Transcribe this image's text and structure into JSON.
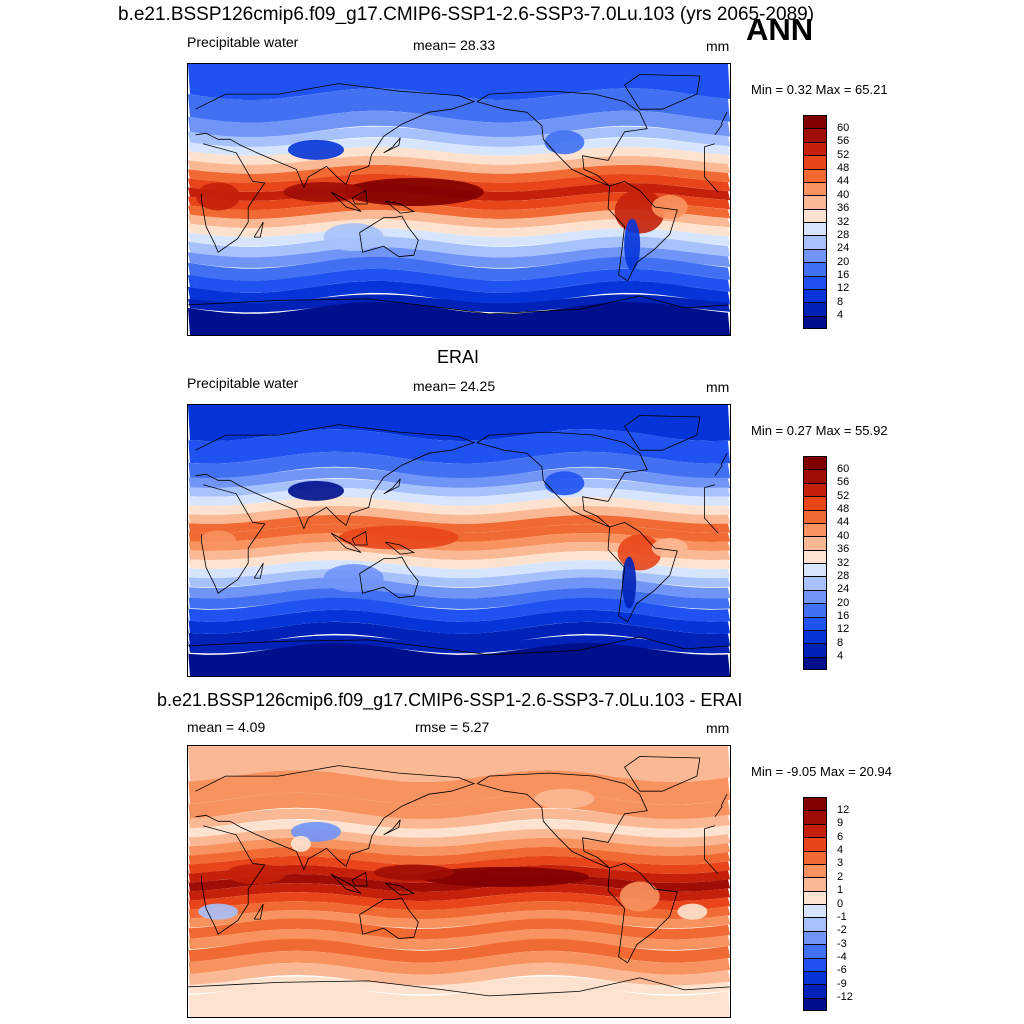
{
  "header": {
    "title": "b.e21.BSSP126cmip6.f09_g17.CMIP6-SSP1-2.6-SSP3-7.0Lu.103 (yrs 2065-2089)",
    "season": "ANN"
  },
  "panels": [
    {
      "id": "model",
      "title": "",
      "left_label": "Precipitable water",
      "center_label": "mean=  28.33",
      "units": "mm",
      "minmax": "Min =   0.32 Max =  65.21",
      "palette": [
        "#000f8c",
        "#0022b8",
        "#0535d8",
        "#1f52f0",
        "#4170f2",
        "#7194f7",
        "#a7c1fa",
        "#d6e5fd",
        "#fde3cf",
        "#fbb894",
        "#f8935f",
        "#f26a33",
        "#e8461a",
        "#c4200a",
        "#a00c06",
        "#800000"
      ],
      "ticks": [
        "4",
        "8",
        "12",
        "16",
        "20",
        "24",
        "28",
        "32",
        "36",
        "40",
        "44",
        "48",
        "52",
        "56",
        "60"
      ]
    },
    {
      "id": "obs",
      "title": "ERAI",
      "left_label": "Precipitable water",
      "center_label": "mean=  24.25",
      "units": "mm",
      "minmax": "Min =   0.27 Max =  55.92",
      "palette": [
        "#000f8c",
        "#0022b8",
        "#0535d8",
        "#1f52f0",
        "#4170f2",
        "#7194f7",
        "#a7c1fa",
        "#d6e5fd",
        "#fde3cf",
        "#fbb894",
        "#f8935f",
        "#f26a33",
        "#e8461a",
        "#c4200a",
        "#a00c06",
        "#800000"
      ],
      "ticks": [
        "4",
        "8",
        "12",
        "16",
        "20",
        "24",
        "28",
        "32",
        "36",
        "40",
        "44",
        "48",
        "52",
        "56",
        "60"
      ]
    },
    {
      "id": "diff",
      "title": "b.e21.BSSP126cmip6.f09_g17.CMIP6-SSP1-2.6-SSP3-7.0Lu.103 - ERAI",
      "left_label": "mean =   4.09",
      "center_label": "rmse =   5.27",
      "units": "mm",
      "minmax": "Min =  -9.05 Max =  20.94",
      "palette": [
        "#000f8c",
        "#0022b8",
        "#0535d8",
        "#1f52f0",
        "#4170f2",
        "#7194f7",
        "#a7c1fa",
        "#d6e5fd",
        "#fde3cf",
        "#fbb894",
        "#f8935f",
        "#f26a33",
        "#e8461a",
        "#c4200a",
        "#a00c06",
        "#800000"
      ],
      "ticks": [
        "-12",
        "-9",
        "-6",
        "-4",
        "-3",
        "-2",
        "-1",
        "0",
        "1",
        "2",
        "3",
        "4",
        "6",
        "9",
        "12"
      ]
    }
  ],
  "chart_data": [
    {
      "type": "heatmap",
      "title": "b.e21.BSSP126cmip6.f09_g17.CMIP6-SSP1-2.6-SSP3-7.0Lu.103 (yrs 2065-2089)",
      "variable": "Precipitable water",
      "units": "mm",
      "mean": 28.33,
      "min": 0.32,
      "max": 65.21,
      "contour_levels": [
        4,
        8,
        12,
        16,
        20,
        24,
        28,
        32,
        36,
        40,
        44,
        48,
        52,
        56,
        60
      ]
    },
    {
      "type": "heatmap",
      "title": "ERAI",
      "variable": "Precipitable water",
      "units": "mm",
      "mean": 24.25,
      "min": 0.27,
      "max": 55.92,
      "contour_levels": [
        4,
        8,
        12,
        16,
        20,
        24,
        28,
        32,
        36,
        40,
        44,
        48,
        52,
        56,
        60
      ]
    },
    {
      "type": "heatmap",
      "title": "b.e21.BSSP126cmip6.f09_g17.CMIP6-SSP1-2.6-SSP3-7.0Lu.103 - ERAI",
      "units": "mm",
      "mean": 4.09,
      "rmse": 5.27,
      "min": -9.05,
      "max": 20.94,
      "contour_levels": [
        -12,
        -9,
        -6,
        -4,
        -3,
        -2,
        -1,
        0,
        1,
        2,
        3,
        4,
        6,
        9,
        12
      ]
    }
  ]
}
